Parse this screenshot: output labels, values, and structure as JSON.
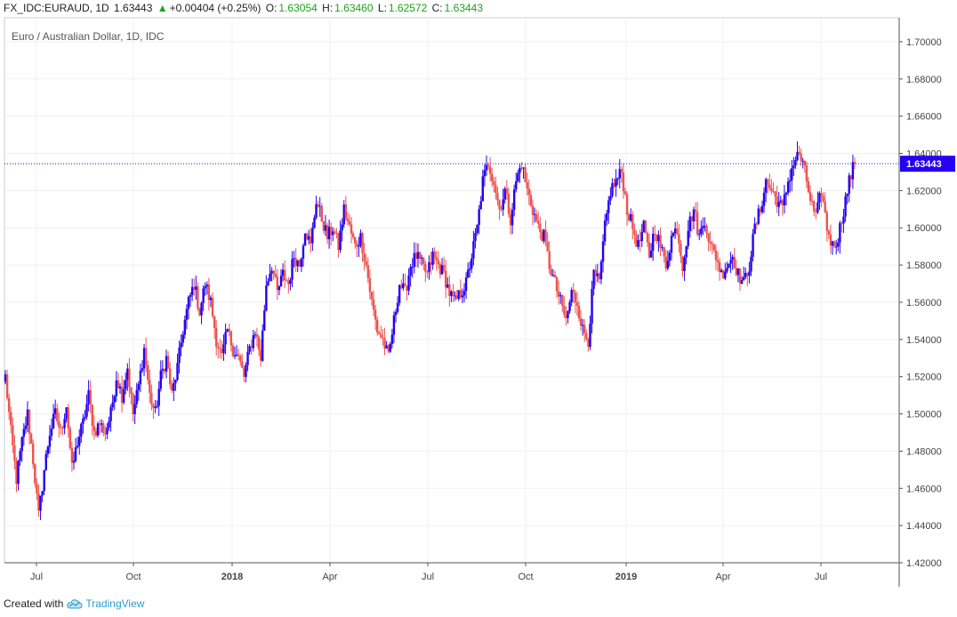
{
  "header": {
    "symbol": "FX_IDC:EURAUD, 1D",
    "last": "1.63443",
    "change": "+0.00404 (+0.25%)",
    "open_label": "O:",
    "open": "1.63054",
    "high_label": "H:",
    "high": "1.63460",
    "low_label": "L:",
    "low": "1.62572",
    "close_label": "C:",
    "close": "1.63443"
  },
  "subtitle": "Euro / Australian Dollar, 1D, IDC",
  "footer": {
    "created_with": "Created with",
    "brand": "TradingView"
  },
  "colors": {
    "up": "#2500f2",
    "down": "#ef5350",
    "price_line": "#1b1bd6",
    "grid": "#eef0f3"
  },
  "chart_data": {
    "type": "candlestick",
    "title": "Euro / Australian Dollar, 1D, IDC",
    "ylim": [
      1.42,
      1.71
    ],
    "y_ticks": [
      "1.70000",
      "1.68000",
      "1.66000",
      "1.64000",
      "1.62000",
      "1.60000",
      "1.58000",
      "1.56000",
      "1.54000",
      "1.52000",
      "1.50000",
      "1.48000",
      "1.46000",
      "1.44000",
      "1.42000"
    ],
    "x_ticks": [
      "Jul",
      "Oct",
      "2018",
      "Apr",
      "Jul",
      "Oct",
      "2019",
      "Apr",
      "Jul"
    ],
    "x_tick_bold": [
      false,
      false,
      true,
      false,
      false,
      false,
      true,
      false,
      false
    ],
    "current_price": 1.63443,
    "current_price_label": "1.63443",
    "grid": true,
    "path": [
      1.52,
      1.49,
      1.465,
      1.485,
      1.5,
      1.475,
      1.445,
      1.47,
      1.49,
      1.5,
      1.49,
      1.505,
      1.47,
      1.485,
      1.495,
      1.51,
      1.49,
      1.495,
      1.49,
      1.5,
      1.52,
      1.51,
      1.525,
      1.5,
      1.515,
      1.535,
      1.51,
      1.5,
      1.52,
      1.53,
      1.51,
      1.525,
      1.545,
      1.56,
      1.57,
      1.555,
      1.57,
      1.56,
      1.54,
      1.53,
      1.545,
      1.535,
      1.53,
      1.52,
      1.535,
      1.545,
      1.53,
      1.57,
      1.58,
      1.565,
      1.575,
      1.57,
      1.585,
      1.58,
      1.6,
      1.59,
      1.615,
      1.605,
      1.595,
      1.6,
      1.59,
      1.61,
      1.6,
      1.59,
      1.595,
      1.58,
      1.56,
      1.545,
      1.54,
      1.53,
      1.55,
      1.57,
      1.565,
      1.58,
      1.585,
      1.58,
      1.575,
      1.585,
      1.58,
      1.575,
      1.565,
      1.56,
      1.565,
      1.57,
      1.585,
      1.6,
      1.625,
      1.635,
      1.625,
      1.61,
      1.62,
      1.605,
      1.625,
      1.635,
      1.62,
      1.61,
      1.6,
      1.595,
      1.58,
      1.57,
      1.56,
      1.55,
      1.565,
      1.56,
      1.545,
      1.54,
      1.575,
      1.57,
      1.6,
      1.62,
      1.625,
      1.63,
      1.61,
      1.6,
      1.59,
      1.6,
      1.585,
      1.6,
      1.59,
      1.58,
      1.595,
      1.6,
      1.58,
      1.6,
      1.61,
      1.595,
      1.605,
      1.59,
      1.585,
      1.575,
      1.58,
      1.585,
      1.575,
      1.57,
      1.58,
      1.6,
      1.61,
      1.625,
      1.62,
      1.615,
      1.61,
      1.625,
      1.635,
      1.64,
      1.63,
      1.615,
      1.605,
      1.62,
      1.6,
      1.59,
      1.595,
      1.61,
      1.625,
      1.635
    ]
  }
}
